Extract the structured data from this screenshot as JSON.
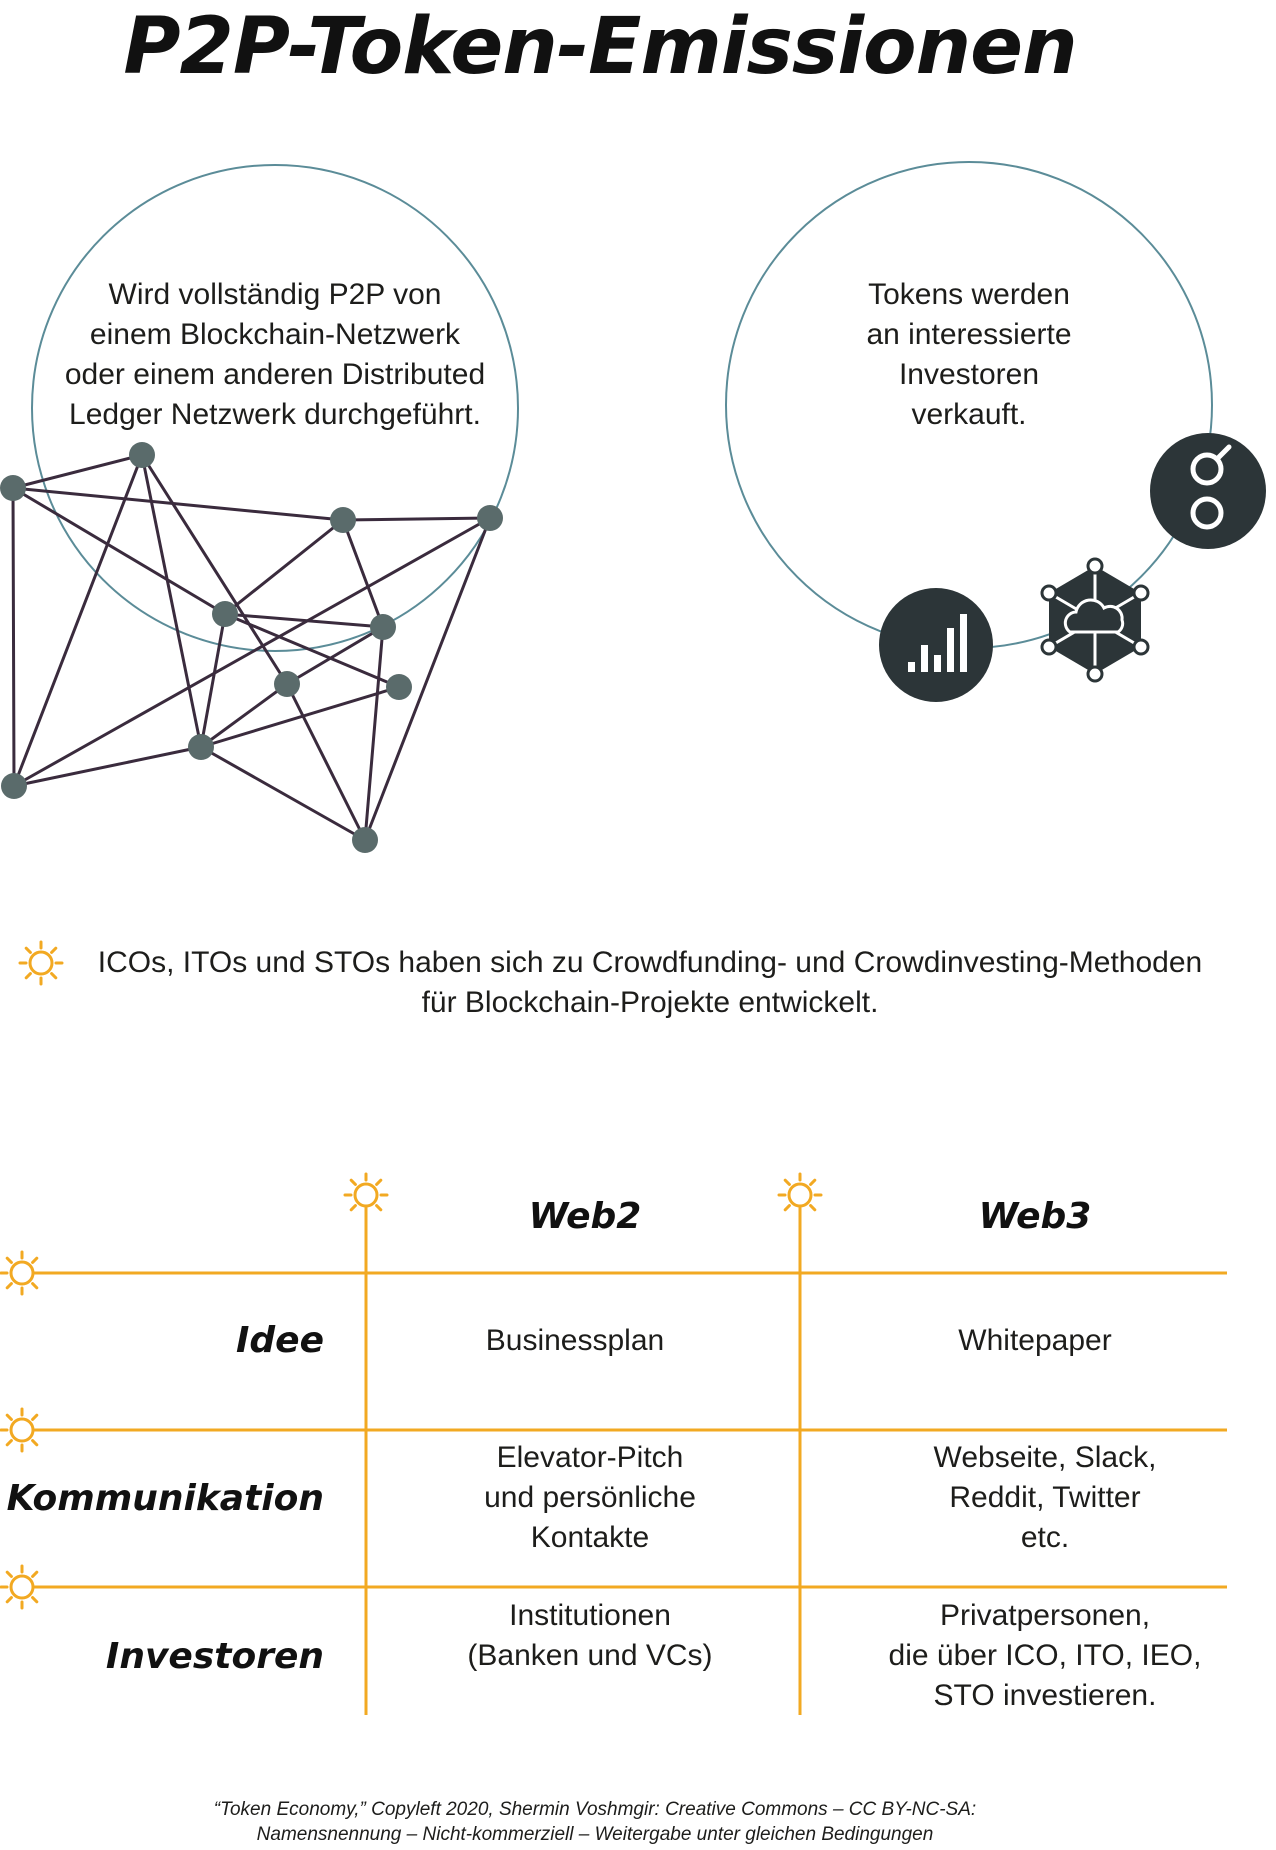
{
  "title": "P2P-Token-Emissionen",
  "left_circle": {
    "lines": [
      "Wird vollständig P2P von",
      "einem Blockchain-Netzwerk",
      "oder einem anderen Distributed",
      "Ledger Netzwerk durchgeführt."
    ]
  },
  "right_circle": {
    "lines": [
      "Tokens werden",
      "an interessierte",
      "Investoren",
      "verkauft."
    ],
    "icons": [
      "bar-chart-icon",
      "cloud-network-icon",
      "golem-token-icon"
    ]
  },
  "note": {
    "icon": "sun-icon",
    "lines": [
      "ICOs, ITOs und STOs haben sich zu Crowdfunding- und Crowdinvesting-Methoden",
      "für Blockchain-Projekte entwickelt."
    ]
  },
  "table": {
    "headers": [
      "Web2",
      "Web3"
    ],
    "rows": [
      {
        "label": "Idee",
        "web2": [
          "Businessplan"
        ],
        "web3": [
          "Whitepaper"
        ]
      },
      {
        "label": "Kommunikation",
        "web2": [
          "Elevator-Pitch",
          "und persönliche",
          "Kontakte"
        ],
        "web3": [
          "Webseite, Slack,",
          "Reddit, Twitter",
          "etc."
        ]
      },
      {
        "label": "Investoren",
        "web2": [
          "Institutionen",
          "(Banken und VCs)"
        ],
        "web3": [
          "Privatpersonen,",
          "die über ICO, ITO, IEO,",
          "STO investieren."
        ]
      }
    ]
  },
  "credit": {
    "lines": [
      "“Token Economy,” Copyleft 2020, Shermin Voshmgir: Creative Commons – CC BY-NC-SA:",
      "Namensnennung – Nicht-kommerziell – Weitergabe unter gleichen Bedingungen"
    ]
  },
  "colors": {
    "circle_stroke": "#5b8c98",
    "network_edge": "#3a2b3d",
    "network_node": "#5a6b6b",
    "icon_fill": "#2c3538",
    "sun": "#f2a922",
    "grid": "#f2a922"
  }
}
